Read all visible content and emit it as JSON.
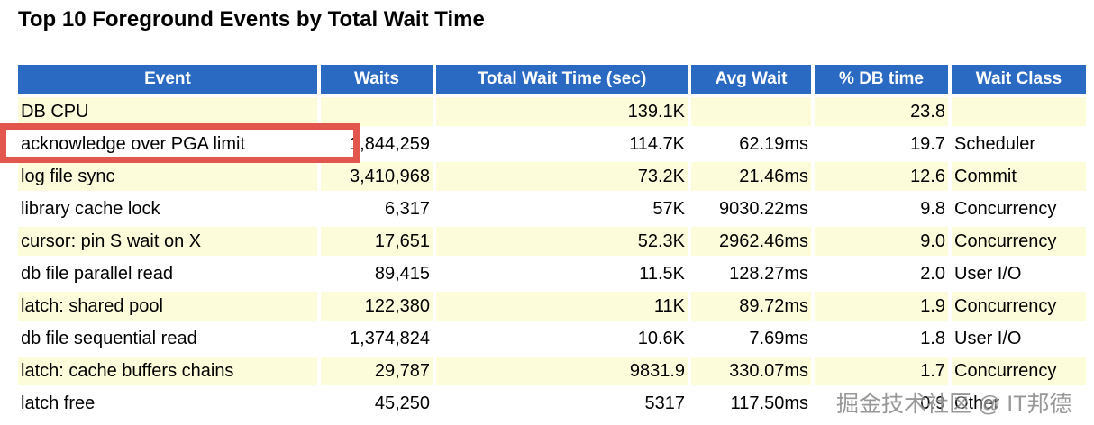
{
  "title": "Top 10 Foreground Events by Total Wait Time",
  "table": {
    "columns": [
      {
        "key": "event",
        "label": "Event",
        "align": "left"
      },
      {
        "key": "waits",
        "label": "Waits",
        "align": "right"
      },
      {
        "key": "total_wait",
        "label": "Total Wait Time (sec)",
        "align": "right"
      },
      {
        "key": "avg_wait",
        "label": "Avg Wait",
        "align": "right"
      },
      {
        "key": "pct_db_time",
        "label": "% DB time",
        "align": "right"
      },
      {
        "key": "wait_class",
        "label": "Wait Class",
        "align": "left"
      }
    ],
    "rows": [
      {
        "event": "DB CPU",
        "waits": "",
        "total_wait": "139.1K",
        "avg_wait": "",
        "pct_db_time": "23.8",
        "wait_class": ""
      },
      {
        "event": "acknowledge over PGA limit",
        "waits": "1,844,259",
        "total_wait": "114.7K",
        "avg_wait": "62.19ms",
        "pct_db_time": "19.7",
        "wait_class": "Scheduler"
      },
      {
        "event": "log file sync",
        "waits": "3,410,968",
        "total_wait": "73.2K",
        "avg_wait": "21.46ms",
        "pct_db_time": "12.6",
        "wait_class": "Commit"
      },
      {
        "event": "library cache lock",
        "waits": "6,317",
        "total_wait": "57K",
        "avg_wait": "9030.22ms",
        "pct_db_time": "9.8",
        "wait_class": "Concurrency"
      },
      {
        "event": "cursor: pin S wait on X",
        "waits": "17,651",
        "total_wait": "52.3K",
        "avg_wait": "2962.46ms",
        "pct_db_time": "9.0",
        "wait_class": "Concurrency"
      },
      {
        "event": "db file parallel read",
        "waits": "89,415",
        "total_wait": "11.5K",
        "avg_wait": "128.27ms",
        "pct_db_time": "2.0",
        "wait_class": "User I/O"
      },
      {
        "event": "latch: shared pool",
        "waits": "122,380",
        "total_wait": "11K",
        "avg_wait": "89.72ms",
        "pct_db_time": "1.9",
        "wait_class": "Concurrency"
      },
      {
        "event": "db file sequential read",
        "waits": "1,374,824",
        "total_wait": "10.6K",
        "avg_wait": "7.69ms",
        "pct_db_time": "1.8",
        "wait_class": "User I/O"
      },
      {
        "event": "latch: cache buffers chains",
        "waits": "29,787",
        "total_wait": "9831.9",
        "avg_wait": "330.07ms",
        "pct_db_time": "1.7",
        "wait_class": "Concurrency"
      },
      {
        "event": "latch free",
        "waits": "45,250",
        "total_wait": "5317",
        "avg_wait": "117.50ms",
        "pct_db_time": "0.9",
        "wait_class": "Other"
      }
    ]
  },
  "highlight": {
    "target_row_event": "acknowledge over PGA limit",
    "border_color": "#e2564d"
  },
  "watermark": "掘金技术社区 @ IT邦德",
  "colors": {
    "header_bg": "#2b6ac3",
    "header_text": "#ffffff",
    "row_alt_bg": "#fdfcda",
    "row_bg": "#ffffff",
    "highlight_red": "#e2564d",
    "watermark_gray": "#8d8d8d"
  }
}
